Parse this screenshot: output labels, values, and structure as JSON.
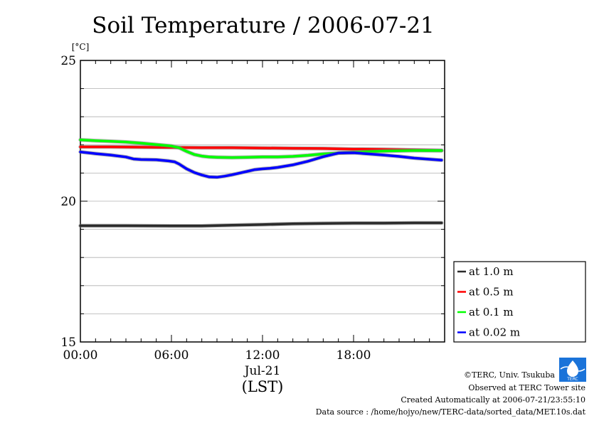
{
  "chart_data": {
    "type": "line",
    "title": "Soil Temperature / 2006-07-21",
    "ylabel": "[°C]",
    "xlabel_date": "Jul-21",
    "xlabel": "(LST)",
    "ylim": [
      15,
      25
    ],
    "xlim": [
      0,
      24
    ],
    "y_ticks": [
      15,
      20,
      25
    ],
    "x_ticks": [
      0,
      6,
      12,
      18
    ],
    "x_tick_labels": [
      "00:00",
      "06:00",
      "12:00",
      "18:00"
    ],
    "grid": true,
    "legend": "right",
    "series": [
      {
        "name": "at 1.0 m",
        "color": "#2b2b2b",
        "x": [
          0,
          3,
          6,
          8,
          10,
          12,
          14,
          16,
          18,
          20,
          22,
          23.8
        ],
        "y": [
          19.13,
          19.13,
          19.12,
          19.12,
          19.15,
          19.17,
          19.2,
          19.21,
          19.22,
          19.22,
          19.23,
          19.23
        ]
      },
      {
        "name": "at 0.5 m",
        "color": "#ff0000",
        "x": [
          0,
          2,
          4,
          6,
          8,
          10,
          12,
          14,
          16,
          18,
          20,
          22,
          23.8
        ],
        "y": [
          21.93,
          21.93,
          21.92,
          21.91,
          21.9,
          21.9,
          21.89,
          21.88,
          21.87,
          21.85,
          21.84,
          21.82,
          21.8
        ]
      },
      {
        "name": "at 0.1 m",
        "color": "#00ff00",
        "x": [
          0,
          1,
          2,
          3,
          4,
          5,
          6,
          6.5,
          7,
          7.5,
          8,
          8.5,
          9,
          10,
          11,
          12,
          13,
          14,
          15,
          16,
          17,
          18,
          19,
          20,
          21,
          22,
          23,
          23.8
        ],
        "y": [
          22.18,
          22.15,
          22.13,
          22.1,
          22.06,
          22.01,
          21.96,
          21.9,
          21.77,
          21.66,
          21.6,
          21.57,
          21.56,
          21.55,
          21.56,
          21.57,
          21.57,
          21.59,
          21.63,
          21.68,
          21.71,
          21.74,
          21.76,
          21.78,
          21.79,
          21.8,
          21.8,
          21.8
        ]
      },
      {
        "name": "at 0.02 m",
        "color": "#0000ff",
        "x": [
          0,
          1,
          2,
          3,
          3.5,
          4,
          5,
          5.8,
          6.2,
          6.5,
          7,
          7.5,
          8,
          8.5,
          9,
          9.5,
          10,
          11,
          11.5,
          12,
          12.5,
          13,
          14,
          15,
          16,
          17,
          18,
          19,
          20,
          21,
          22,
          23,
          23.8
        ],
        "y": [
          21.75,
          21.69,
          21.64,
          21.57,
          21.5,
          21.48,
          21.47,
          21.43,
          21.4,
          21.32,
          21.15,
          21.02,
          20.93,
          20.86,
          20.85,
          20.89,
          20.94,
          21.06,
          21.12,
          21.15,
          21.17,
          21.2,
          21.29,
          21.42,
          21.58,
          21.71,
          21.72,
          21.68,
          21.64,
          21.59,
          21.53,
          21.49,
          21.46
        ]
      }
    ]
  },
  "credits": [
    "©TERC, Univ. Tsukuba",
    "Observed at TERC Tower site",
    "Created Automatically at 2006-07-21/23:55:10",
    "Data source : /home/hojyo/new/TERC-data/sorted_data/MET.10s.dat"
  ],
  "logo_text": "TERC"
}
